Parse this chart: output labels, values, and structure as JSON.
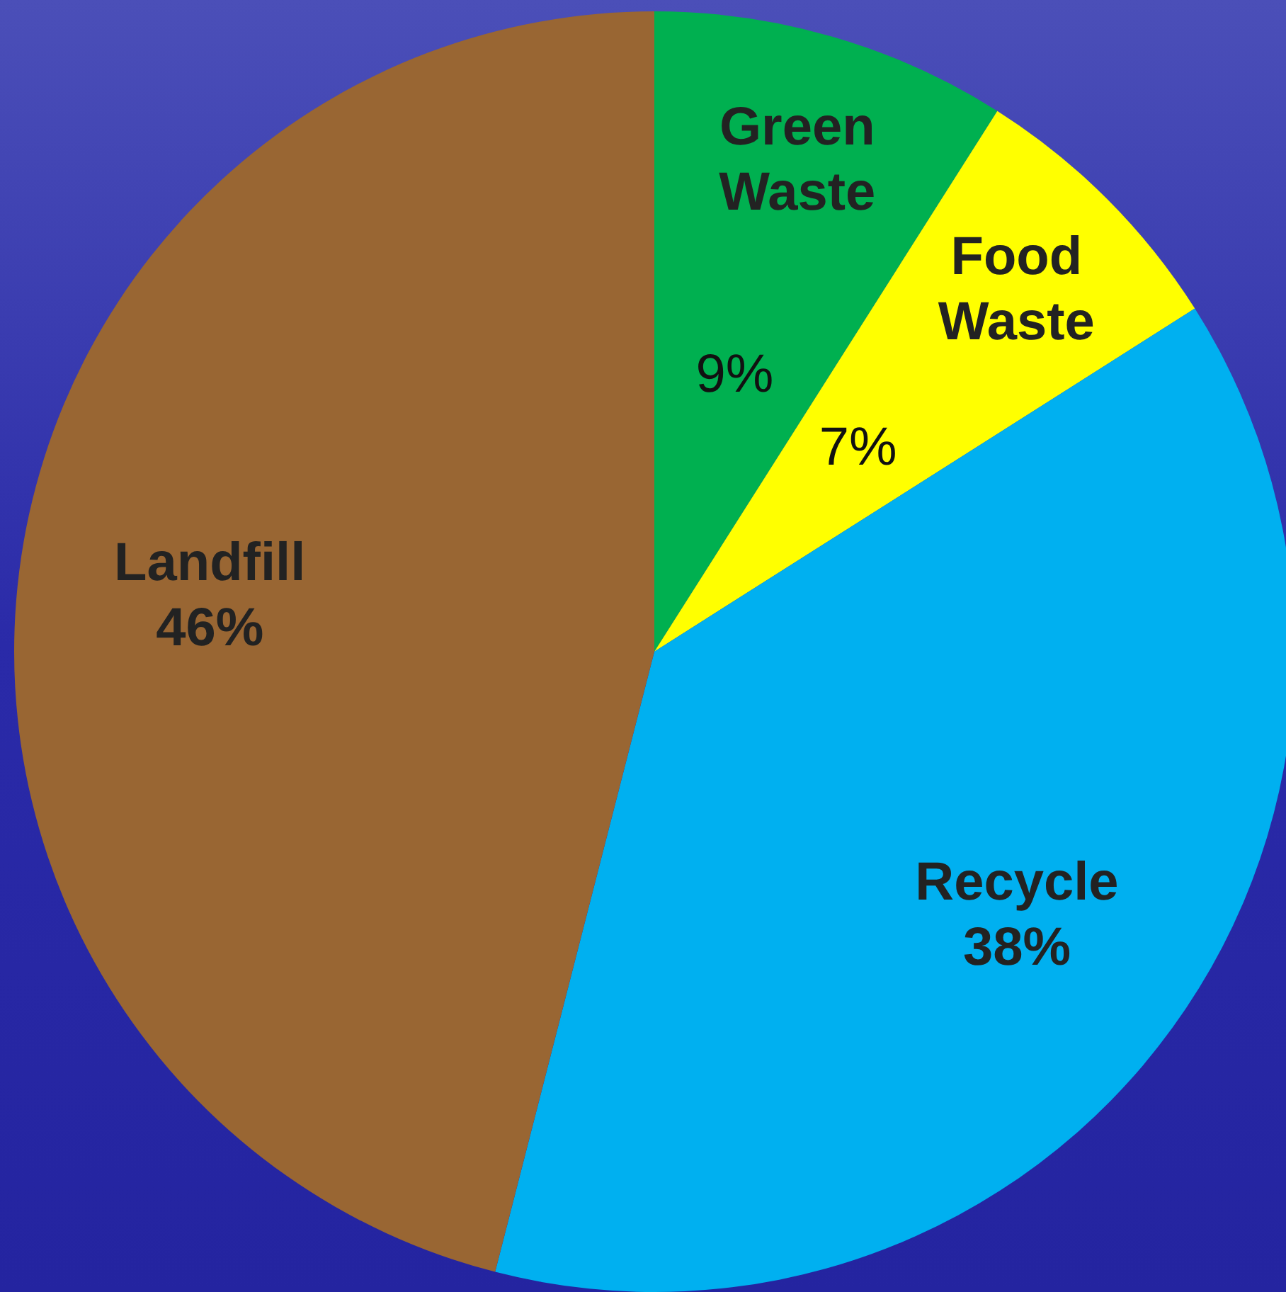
{
  "chart_data": {
    "type": "pie",
    "categories": [
      "Green Waste",
      "Food Waste",
      "Recycle",
      "Landfill"
    ],
    "values": [
      9,
      7,
      38,
      46
    ],
    "colors": [
      "#00b050",
      "#ffff00",
      "#00b0f0",
      "#996633"
    ],
    "value_labels": [
      "9%",
      "7%",
      "38%",
      "46%"
    ]
  }
}
